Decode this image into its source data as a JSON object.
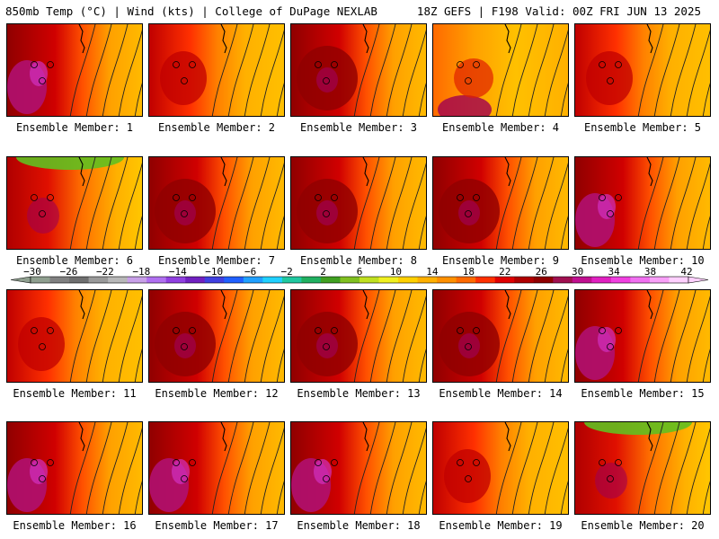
{
  "header": {
    "left": "850mb Temp (°C) | Wind (kts) | College of DuPage NEXLAB",
    "right": "18Z GEFS | F198 Valid: 00Z FRI JUN 13 2025"
  },
  "members": [
    {
      "label": "Ensemble Member: 1",
      "pattern": "hot-west"
    },
    {
      "label": "Ensemble Member: 2",
      "pattern": "warm"
    },
    {
      "label": "Ensemble Member: 3",
      "pattern": "hot"
    },
    {
      "label": "Ensemble Member: 4",
      "pattern": "warm-south"
    },
    {
      "label": "Ensemble Member: 5",
      "pattern": "warm"
    },
    {
      "label": "Ensemble Member: 6",
      "pattern": "cool-north"
    },
    {
      "label": "Ensemble Member: 7",
      "pattern": "hot"
    },
    {
      "label": "Ensemble Member: 8",
      "pattern": "hot"
    },
    {
      "label": "Ensemble Member: 9",
      "pattern": "hot"
    },
    {
      "label": "Ensemble Member: 10",
      "pattern": "hot-west"
    },
    {
      "label": "Ensemble Member: 11",
      "pattern": "warm"
    },
    {
      "label": "Ensemble Member: 12",
      "pattern": "hot"
    },
    {
      "label": "Ensemble Member: 13",
      "pattern": "hot"
    },
    {
      "label": "Ensemble Member: 14",
      "pattern": "hot"
    },
    {
      "label": "Ensemble Member: 15",
      "pattern": "hot-west"
    },
    {
      "label": "Ensemble Member: 16",
      "pattern": "hot-west"
    },
    {
      "label": "Ensemble Member: 17",
      "pattern": "hot-west"
    },
    {
      "label": "Ensemble Member: 18",
      "pattern": "hot-west"
    },
    {
      "label": "Ensemble Member: 19",
      "pattern": "warm"
    },
    {
      "label": "Ensemble Member: 20",
      "pattern": "cool-north"
    }
  ],
  "colorbar": {
    "labels": [
      "−30",
      "−26",
      "−22",
      "−18",
      "−14",
      "−10",
      "−6",
      "−2",
      "2",
      "6",
      "10",
      "14",
      "18",
      "22",
      "26",
      "30",
      "34",
      "38",
      "42"
    ],
    "colors": [
      "#8f9f8f",
      "#808080",
      "#6f6f6f",
      "#9a9a9a",
      "#b8b8b8",
      "#c8a0e8",
      "#b070f0",
      "#9040e0",
      "#7020c0",
      "#4040e0",
      "#2060ff",
      "#20a0ff",
      "#20d0ff",
      "#20c8a0",
      "#20b060",
      "#40a020",
      "#80c020",
      "#c0e020",
      "#f0f020",
      "#ffd000",
      "#ffb000",
      "#ff9000",
      "#ff6a00",
      "#ff3000",
      "#e00000",
      "#b00000",
      "#900000",
      "#a01050",
      "#c01090",
      "#e020c0",
      "#f040e0",
      "#f070f0",
      "#f8a0f8",
      "#ffd0ff"
    ]
  }
}
